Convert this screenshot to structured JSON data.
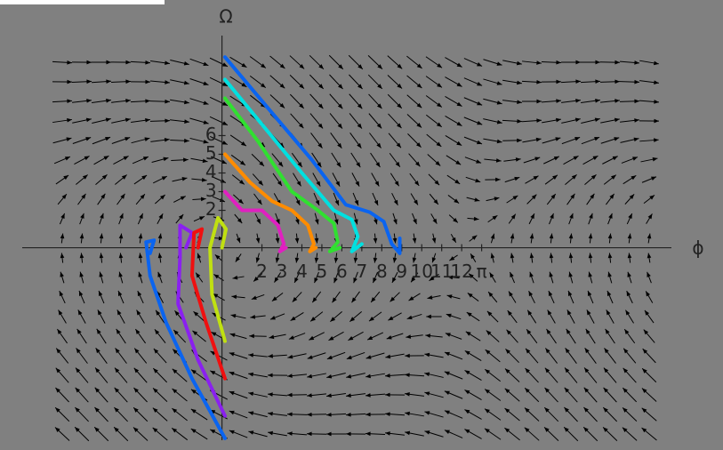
{
  "chart_data": {
    "type": "phase_portrait",
    "x_label": "ϕ",
    "y_label": "Ω",
    "xlim": [
      -10,
      22.5
    ],
    "ylim": [
      -10.3,
      10.4
    ],
    "xticks": [
      2,
      3,
      4,
      5,
      6,
      7,
      8,
      9,
      10,
      11,
      12,
      {
        "value": 13,
        "label": "π"
      }
    ],
    "yticks": [
      2,
      3,
      4,
      5,
      6
    ],
    "series": [
      {
        "color": "#0a64f0",
        "x": [
          0.15,
          2.2,
          4.5,
          6.2,
          7.4,
          8.1,
          8.5,
          8.9,
          8.9
        ],
        "values": [
          10.2,
          7.6,
          4.7,
          2.3,
          1.9,
          1.4,
          0.2,
          -0.3,
          0.5
        ]
      },
      {
        "color": "#00e0e0",
        "x": [
          0.15,
          2,
          4,
          5.6,
          6.5,
          6.8,
          6.5,
          7
        ],
        "values": [
          9,
          6.6,
          4,
          2,
          1.5,
          0.6,
          -0.2,
          0.2
        ]
      },
      {
        "color": "#30e030",
        "x": [
          0.15,
          1.8,
          3.5,
          4.8,
          5.6,
          5.8,
          5.4,
          5.9
        ],
        "values": [
          8,
          5.7,
          3,
          2,
          1.3,
          0.3,
          -0.2,
          0
        ]
      },
      {
        "color": "#ff8c00",
        "x": [
          0.15,
          1.4,
          2.5,
          3.5,
          4.3,
          4.6,
          4.4,
          4.7
        ],
        "values": [
          5,
          3.5,
          2.5,
          2,
          1.2,
          0.2,
          -0.2,
          0
        ]
      },
      {
        "color": "#e020c0",
        "x": [
          0.15,
          1,
          2,
          2.8,
          3.1,
          2.9,
          3.2
        ],
        "values": [
          3,
          2,
          2,
          1.2,
          0.2,
          -0.2,
          0
        ]
      },
      {
        "color": "#0a64f0",
        "x": [
          0.15,
          -1.5,
          -2.8,
          -3.6,
          -3.8,
          -3.4,
          -3.6
        ],
        "values": [
          -10.2,
          -7,
          -4,
          -1.5,
          0.3,
          0.4,
          -0.3
        ]
      },
      {
        "color": "#8a20f0",
        "x": [
          0.15,
          -1.2,
          -2.2,
          -2.1,
          -2.1,
          -1.5,
          -1.8
        ],
        "values": [
          -9,
          -6,
          -3,
          -0.5,
          1.2,
          0.8,
          0
        ]
      },
      {
        "color": "#f01010",
        "x": [
          0.15,
          -0.8,
          -1.5,
          -1.4,
          -1,
          -1.2
        ],
        "values": [
          -7,
          -4,
          -1.5,
          0.8,
          1,
          0
        ]
      },
      {
        "color": "#c0e010",
        "x": [
          0.15,
          -0.5,
          -0.6,
          -0.2,
          0.2,
          0
        ],
        "values": [
          -5,
          -2.5,
          0,
          1.6,
          1,
          0
        ]
      }
    ]
  }
}
